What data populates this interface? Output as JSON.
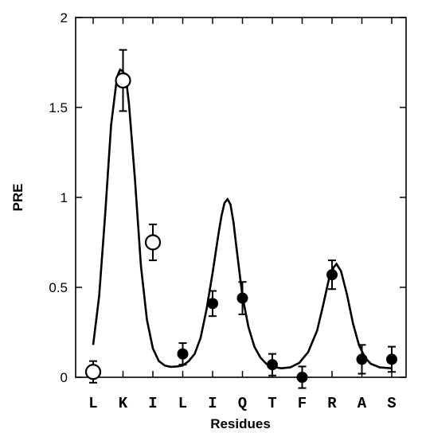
{
  "chart_data": {
    "type": "scatter",
    "xlabel": "Residues",
    "ylabel": "PRE",
    "categories": [
      "L",
      "K",
      "I",
      "L",
      "I",
      "Q",
      "T",
      "F",
      "R",
      "A",
      "S"
    ],
    "ylim": [
      0,
      2
    ],
    "yticks": [
      "0",
      "0.5",
      "1",
      "1.5",
      "2"
    ],
    "grid": false,
    "series": [
      {
        "marker": "open-circle",
        "points": [
          {
            "category_index": 0,
            "value": 0.03,
            "error": 0.06
          },
          {
            "category_index": 1,
            "value": 1.65,
            "error": 0.17
          },
          {
            "category_index": 2,
            "value": 0.75,
            "error": 0.1
          }
        ]
      },
      {
        "marker": "filled-circle",
        "points": [
          {
            "category_index": 3,
            "value": 0.13,
            "error": 0.06
          },
          {
            "category_index": 4,
            "value": 0.41,
            "error": 0.07
          },
          {
            "category_index": 5,
            "value": 0.44,
            "error": 0.09
          },
          {
            "category_index": 6,
            "value": 0.07,
            "error": 0.06
          },
          {
            "category_index": 7,
            "value": 0.0,
            "error": 0.06
          },
          {
            "category_index": 8,
            "value": 0.57,
            "error": 0.08
          },
          {
            "category_index": 9,
            "value": 0.1,
            "error": 0.08
          },
          {
            "category_index": 10,
            "value": 0.1,
            "error": 0.07
          }
        ]
      },
      {
        "type": "line",
        "curve": [
          [
            0.0,
            0.18
          ],
          [
            0.2,
            0.45
          ],
          [
            0.4,
            0.9
          ],
          [
            0.6,
            1.4
          ],
          [
            0.8,
            1.67
          ],
          [
            0.9,
            1.71
          ],
          [
            1.0,
            1.7
          ],
          [
            1.1,
            1.66
          ],
          [
            1.2,
            1.52
          ],
          [
            1.4,
            1.1
          ],
          [
            1.6,
            0.62
          ],
          [
            1.8,
            0.32
          ],
          [
            2.0,
            0.16
          ],
          [
            2.2,
            0.09
          ],
          [
            2.4,
            0.065
          ],
          [
            2.6,
            0.058
          ],
          [
            2.8,
            0.06
          ],
          [
            3.0,
            0.065
          ],
          [
            3.2,
            0.09
          ],
          [
            3.4,
            0.13
          ],
          [
            3.6,
            0.22
          ],
          [
            3.8,
            0.38
          ],
          [
            4.0,
            0.58
          ],
          [
            4.2,
            0.8
          ],
          [
            4.3,
            0.9
          ],
          [
            4.4,
            0.97
          ],
          [
            4.5,
            0.99
          ],
          [
            4.6,
            0.96
          ],
          [
            4.7,
            0.86
          ],
          [
            4.8,
            0.72
          ],
          [
            5.0,
            0.45
          ],
          [
            5.2,
            0.28
          ],
          [
            5.4,
            0.17
          ],
          [
            5.6,
            0.11
          ],
          [
            5.8,
            0.075
          ],
          [
            6.0,
            0.058
          ],
          [
            6.3,
            0.05
          ],
          [
            6.6,
            0.055
          ],
          [
            6.9,
            0.08
          ],
          [
            7.2,
            0.14
          ],
          [
            7.5,
            0.26
          ],
          [
            7.7,
            0.4
          ],
          [
            7.9,
            0.55
          ],
          [
            8.05,
            0.61
          ],
          [
            8.15,
            0.63
          ],
          [
            8.3,
            0.59
          ],
          [
            8.5,
            0.46
          ],
          [
            8.7,
            0.3
          ],
          [
            8.9,
            0.18
          ],
          [
            9.1,
            0.11
          ],
          [
            9.3,
            0.075
          ],
          [
            9.6,
            0.055
          ],
          [
            10.0,
            0.05
          ]
        ]
      }
    ]
  }
}
